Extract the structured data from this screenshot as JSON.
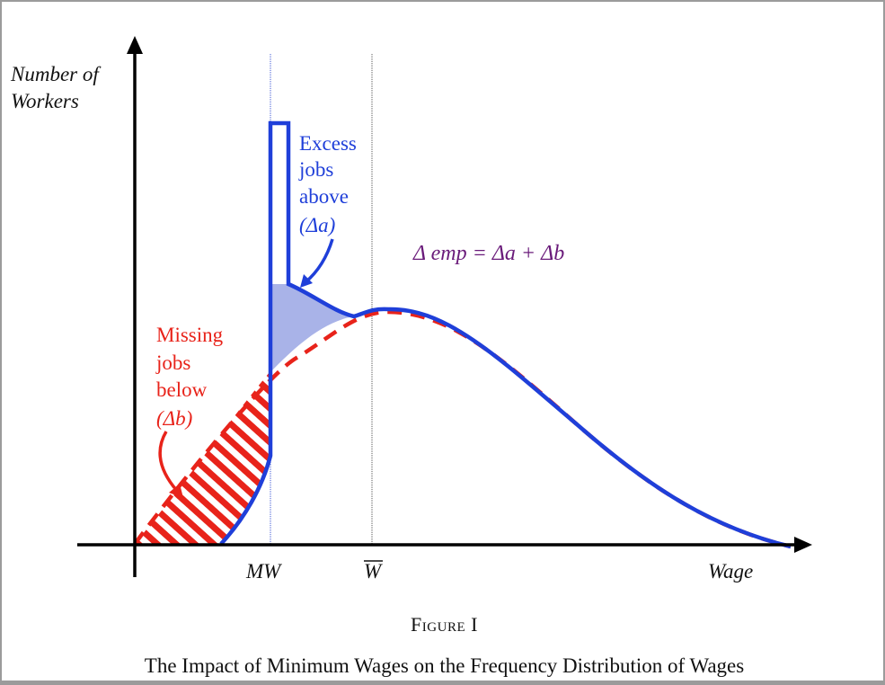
{
  "axes": {
    "y_label_line1": "Number of",
    "y_label_line2": "Workers",
    "x_label": "Wage",
    "tick_mw": "MW",
    "tick_wbar": "W"
  },
  "annotations": {
    "excess": [
      "Excess",
      "jobs",
      "above",
      "(Δa)"
    ],
    "missing": [
      "Missing",
      "jobs",
      "below",
      "(Δb)"
    ],
    "equation": "Δ emp = Δa + Δb"
  },
  "caption": {
    "figure_label": "Figure I",
    "title": "The Impact of Minimum Wages on the Frequency Distribution of Wages"
  },
  "colors": {
    "post_min_wage_curve": "#1f3fd9",
    "counterfactual_curve": "#e8231a",
    "excess_fill": "#a9b3e8",
    "equation_text": "#6a1b7a"
  }
}
